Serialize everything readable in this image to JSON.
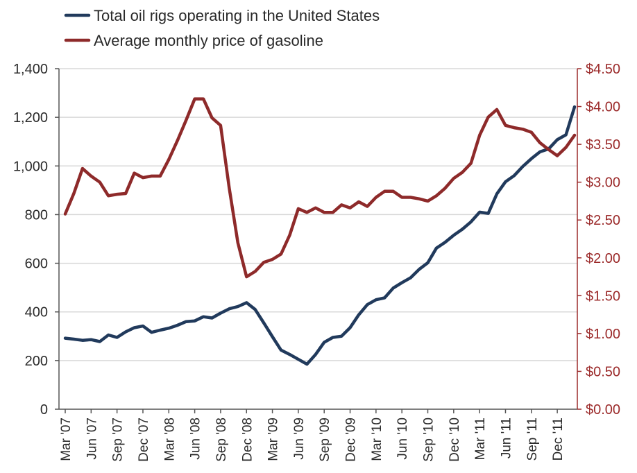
{
  "chart_data": {
    "type": "line",
    "title": "",
    "xlabel": "",
    "ylabel": "",
    "legend_placement": "top-left",
    "grid": true,
    "x_ticks": [
      "Mar '07",
      "Jun '07",
      "Sep '07",
      "Dec '07",
      "Mar '08",
      "Jun '08",
      "Sep '08",
      "Dec '08",
      "Mar '09",
      "Jun '09",
      "Sep '09",
      "Dec '09",
      "Mar '10",
      "Jun '10",
      "Sep '10",
      "Dec '10",
      "Mar '11",
      "Jun '11",
      "Sep '11",
      "Dec '11"
    ],
    "x_range": [
      0,
      59
    ],
    "y_left": {
      "ticks": [
        "0",
        "200",
        "400",
        "600",
        "800",
        "1,000",
        "1,200",
        "1,400"
      ],
      "range": [
        0,
        1400
      ]
    },
    "y_right": {
      "ticks": [
        "$0.00",
        "$0.50",
        "$1.00",
        "$1.50",
        "$2.00",
        "$2.50",
        "$3.00",
        "$3.50",
        "$4.00",
        "$4.50"
      ],
      "range": [
        0,
        4.5
      ]
    },
    "series": [
      {
        "name": "Total oil rigs operating in the United States",
        "axis": "left",
        "color": "#213a5c",
        "x": [
          0,
          1,
          2,
          3,
          4,
          5,
          6,
          7,
          8,
          9,
          10,
          11,
          12,
          13,
          14,
          15,
          16,
          17,
          18,
          19,
          20,
          21,
          22,
          23,
          24,
          25,
          26,
          27,
          28,
          29,
          30,
          31,
          32,
          33,
          34,
          35,
          36,
          37,
          38,
          39,
          40,
          41,
          42,
          43,
          44,
          45,
          46,
          47,
          48,
          49,
          50,
          51,
          52,
          53,
          54,
          55,
          56,
          57,
          58,
          59
        ],
        "values": [
          292,
          288,
          283,
          286,
          278,
          305,
          295,
          318,
          335,
          342,
          316,
          325,
          333,
          345,
          360,
          363,
          380,
          375,
          395,
          413,
          422,
          438,
          410,
          355,
          298,
          243,
          225,
          205,
          185,
          225,
          275,
          295,
          300,
          335,
          388,
          430,
          450,
          458,
          498,
          520,
          540,
          575,
          602,
          662,
          686,
          715,
          740,
          770,
          810,
          805,
          885,
          935,
          960,
          998,
          1030,
          1058,
          1070,
          1108,
          1128,
          1243
        ]
      },
      {
        "name": "Average monthly price of gasoline",
        "axis": "right",
        "color": "#8e2a2a",
        "x": [
          0,
          1,
          2,
          3,
          4,
          5,
          6,
          7,
          8,
          9,
          10,
          11,
          12,
          13,
          14,
          15,
          16,
          17,
          18,
          19,
          20,
          21,
          22,
          23,
          24,
          25,
          26,
          27,
          28,
          29,
          30,
          31,
          32,
          33,
          34,
          35,
          36,
          37,
          38,
          39,
          40,
          41,
          42,
          43,
          44,
          45,
          46,
          47,
          48,
          49,
          50,
          51,
          52,
          53,
          54,
          55,
          56,
          57,
          58,
          59
        ],
        "values": [
          2.58,
          2.85,
          3.18,
          3.08,
          3.0,
          2.82,
          2.84,
          2.85,
          3.12,
          3.06,
          3.08,
          3.08,
          3.3,
          3.55,
          3.82,
          4.1,
          4.1,
          3.85,
          3.75,
          2.92,
          2.2,
          1.75,
          1.82,
          1.94,
          1.98,
          2.05,
          2.3,
          2.65,
          2.6,
          2.66,
          2.6,
          2.6,
          2.7,
          2.66,
          2.74,
          2.68,
          2.8,
          2.88,
          2.88,
          2.8,
          2.8,
          2.78,
          2.75,
          2.82,
          2.92,
          3.05,
          3.13,
          3.25,
          3.62,
          3.86,
          3.96,
          3.75,
          3.72,
          3.7,
          3.66,
          3.52,
          3.43,
          3.35,
          3.46,
          3.62
        ]
      }
    ]
  }
}
